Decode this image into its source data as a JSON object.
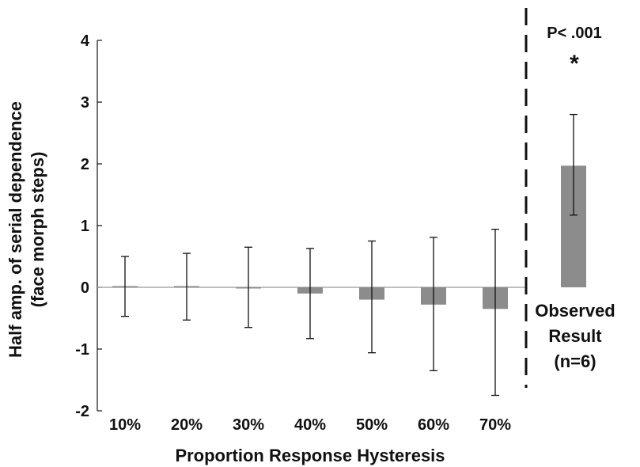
{
  "chart_data": {
    "type": "bar",
    "categories": [
      "10%",
      "20%",
      "30%",
      "40%",
      "50%",
      "60%",
      "70%"
    ],
    "values": [
      0.02,
      0.02,
      -0.01,
      -0.1,
      -0.2,
      -0.28,
      -0.35
    ],
    "error_low": [
      -0.47,
      -0.53,
      -0.65,
      -0.83,
      -1.06,
      -1.35,
      -1.75
    ],
    "error_high": [
      0.5,
      0.55,
      0.65,
      0.63,
      0.75,
      0.81,
      0.94
    ],
    "observed": {
      "label_lines": [
        "Observed",
        "Result",
        "(n=6)"
      ],
      "value": 1.97,
      "error_low": 1.17,
      "error_high": 2.8,
      "p_text": "P< .001",
      "star": "*"
    },
    "xlabel": "Proportion Response Hysteresis",
    "ylabel_lines": [
      "Half amp. of serial dependence",
      "(face morph steps)"
    ],
    "yticks": [
      4,
      3,
      2,
      1,
      0,
      -1,
      -2
    ],
    "ylim": [
      -2,
      4
    ],
    "bar_color": "#8c8c8c",
    "grid": false
  }
}
